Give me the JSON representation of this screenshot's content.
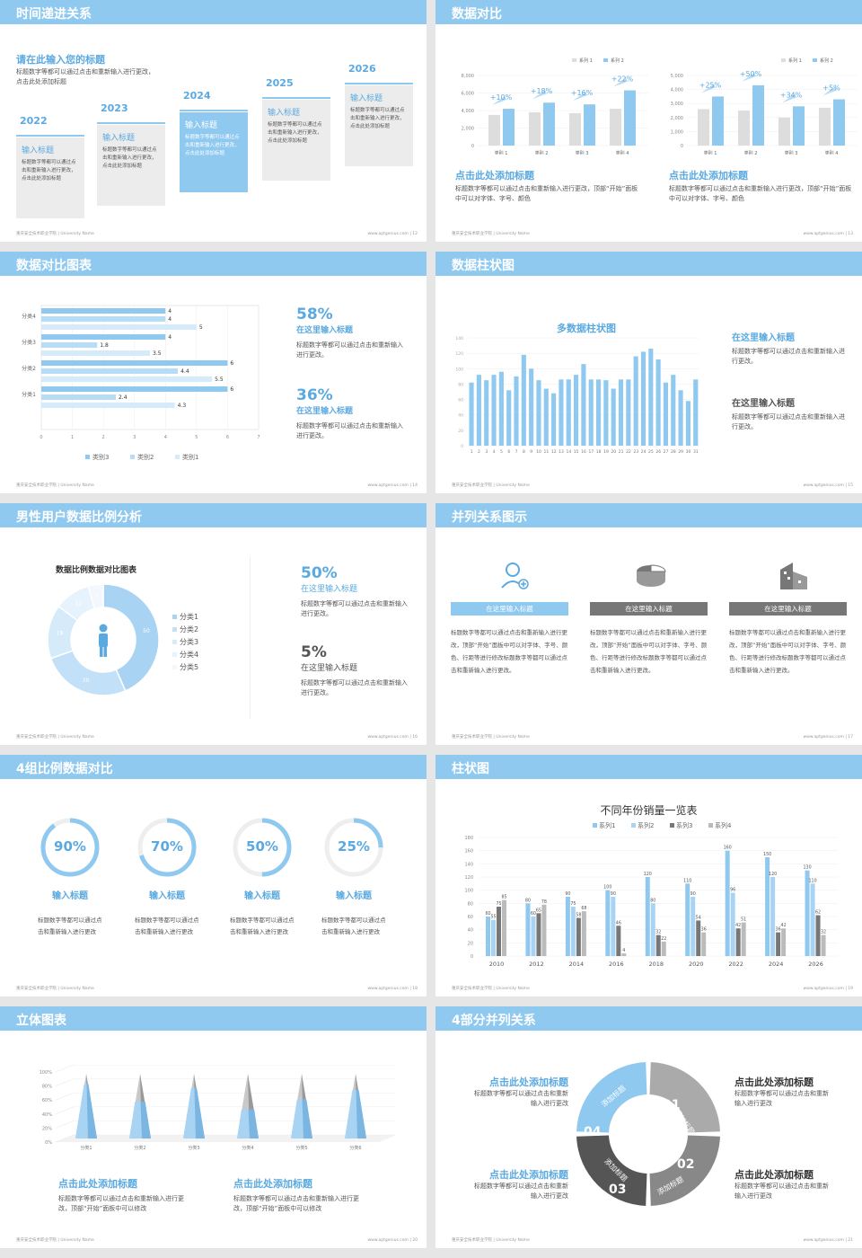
{
  "colors": {
    "accent": "#8fc9f0",
    "blue": "#5aa9e0",
    "dark": "#555555",
    "gray": "#aaaaaa"
  },
  "footer": {
    "left": "重庆安全技术职业学院 | University Name",
    "right": "www.aptgenius.com"
  },
  "s12": {
    "title": "时间递进关系",
    "page": "| 12",
    "heading": "请在此输入您的标题",
    "desc": "标题数字等都可以通过点击和重新输入进行更改，点击此处添加标题",
    "steps": [
      {
        "year": "2022",
        "title": "输入标题",
        "text": "标题数字等都可以通过点击和重新输入进行更改，点击此处添加标题"
      },
      {
        "year": "2023",
        "title": "输入标题",
        "text": "标题数字等都可以通过点击和重新输入进行更改，点击此处添加标题"
      },
      {
        "year": "2024",
        "title": "输入标题",
        "text": "标题数字等都可以通过点击和重新输入进行更改，点击此处添加标题"
      },
      {
        "year": "2025",
        "title": "输入标题",
        "text": "标题数字等都可以通过点击和重新输入进行更改，点击此处添加标题"
      },
      {
        "year": "2026",
        "title": "输入标题",
        "text": "标题数字等都可以通过点击和重新输入进行更改，点击此处添加标题"
      }
    ]
  },
  "s13": {
    "title": "数据对比",
    "page": "| 13",
    "heading": "点击此处添加标题",
    "text": "标题数字等都可以通过点击和重新输入进行更改，顶部“开始”面板中可以对字体、字号、颜色",
    "legend": [
      "系列 1",
      "系列 2"
    ]
  },
  "s14": {
    "title": "数据对比图表",
    "page": "| 14",
    "stats": [
      {
        "value": "58%",
        "label": "在这里输入标题",
        "text": "标题数字等都可以通过点击和重新输入进行更改。"
      },
      {
        "value": "36%",
        "label": "在这里输入标题",
        "text": "标题数字等都可以通过点击和重新输入进行更改。"
      }
    ],
    "legend": [
      "类别3",
      "类别2",
      "类别1"
    ]
  },
  "s15": {
    "title": "数据柱状图",
    "page": "| 15",
    "chart_title": "多数据柱状图",
    "items": [
      {
        "label": "在这里输入标题",
        "text": "标题数字等都可以通过点击和重新输入进行更改。"
      },
      {
        "label": "在这里输入标题",
        "text": "标题数字等都可以通过点击和重新输入进行更改。"
      }
    ]
  },
  "s16": {
    "title": "男性用户数据比例分析",
    "page": "| 16",
    "chart_title": "数据比例数据对比图表",
    "stats": [
      {
        "value": "50%",
        "label": "在这里输入标题",
        "text": "标题数字等都可以通过点击和重新输入进行更改。"
      },
      {
        "value": "5%",
        "label": "在这里输入标题",
        "text": "标题数字等都可以通过点击和重新输入进行更改。"
      }
    ]
  },
  "s17": {
    "title": "并列关系图示",
    "page": "| 17",
    "cols": [
      {
        "label": "在这里输入标题",
        "text": "标题数字等都可以通过点击和重新输入进行更改，顶部“开始”面板中可以对字体、字号、颜色、行距等进行修改标题数字等都可以通过点击和重新输入进行更改。"
      },
      {
        "label": "在这里输入标题",
        "text": "标题数字等都可以通过点击和重新输入进行更改，顶部“开始”面板中可以对字体、字号、颜色、行距等进行修改标题数字等都可以通过点击和重新输入进行更改。"
      },
      {
        "label": "在这里输入标题",
        "text": "标题数字等都可以通过点击和重新输入进行更改，顶部“开始”面板中可以对字体、字号、颜色、行距等进行修改标题数字等都可以通过点击和重新输入进行更改。"
      }
    ]
  },
  "s18": {
    "title": "4组比例数据对比",
    "page": "| 18",
    "items": [
      {
        "pct": "90%",
        "label": "输入标题",
        "text": "标题数字等都可以通过点击和重新输入进行更改",
        "value": 0.9
      },
      {
        "pct": "70%",
        "label": "输入标题",
        "text": "标题数字等都可以通过点击和重新输入进行更改",
        "value": 0.7
      },
      {
        "pct": "50%",
        "label": "输入标题",
        "text": "标题数字等都可以通过点击和重新输入进行更改",
        "value": 0.5
      },
      {
        "pct": "25%",
        "label": "输入标题",
        "text": "标题数字等都可以通过点击和重新输入进行更改",
        "value": 0.25
      }
    ]
  },
  "s19": {
    "title": "柱状图",
    "page": "| 19",
    "chart_title": "不同年份销量一览表"
  },
  "s20": {
    "title": "立体图表",
    "page": "| 20",
    "items": [
      {
        "heading": "点击此处添加标题",
        "text": "标题数字等都可以通过点击和重新输入进行更改，顶部“开始”面板中可以修改"
      },
      {
        "heading": "点击此处添加标题",
        "text": "标题数字等都可以通过点击和重新输入进行更改，顶部“开始”面板中可以修改"
      }
    ]
  },
  "s21": {
    "title": "4部分并列关系",
    "page": "| 21",
    "seg_label": "添加标题",
    "nums": [
      "01",
      "02",
      "03",
      "04"
    ],
    "items": [
      {
        "heading": "点击此处添加标题",
        "text": "标题数字等都可以通过点击和重新输入进行更改"
      },
      {
        "heading": "点击此处添加标题",
        "text": "标题数字等都可以通过点击和重新输入进行更改"
      },
      {
        "heading": "点击此处添加标题",
        "text": "标题数字等都可以通过点击和重新输入进行更改"
      },
      {
        "heading": "点击此处添加标题",
        "text": "标题数字等都可以通过点击和重新输入进行更改"
      }
    ]
  },
  "chart_data": [
    {
      "type": "bar",
      "categories": [
        "类别 1",
        "类别 2",
        "类别 3",
        "类别 4"
      ],
      "series": [
        {
          "name": "系列 1",
          "values": [
            3500,
            3800,
            3700,
            4200
          ]
        },
        {
          "name": "系列 2",
          "values": [
            4200,
            4900,
            4700,
            6300
          ]
        }
      ],
      "labels": [
        "+10%",
        "+18%",
        "+16%",
        "+22%"
      ],
      "ylim": [
        0,
        8000
      ],
      "yticks": [
        "0",
        "2,000",
        "4,000",
        "6,000",
        "8,000"
      ]
    },
    {
      "type": "bar",
      "categories": [
        "类别 1",
        "类别 2",
        "类别 3",
        "类别 4"
      ],
      "series": [
        {
          "name": "系列 1",
          "values": [
            2600,
            2500,
            2000,
            2700
          ]
        },
        {
          "name": "系列 2",
          "values": [
            3500,
            4300,
            2800,
            3300
          ]
        }
      ],
      "labels": [
        "+25%",
        "+50%",
        "+34%",
        "+5%"
      ],
      "ylim": [
        0,
        5000
      ],
      "yticks": [
        "0",
        "1,000",
        "2,000",
        "3,000",
        "4,000",
        "5,000"
      ]
    },
    {
      "type": "bar",
      "orientation": "horizontal",
      "categories": [
        "分类1",
        "分类2",
        "分类3",
        "分类4"
      ],
      "series": [
        {
          "name": "类别1",
          "values": [
            4.3,
            5.5,
            3.5,
            5
          ]
        },
        {
          "name": "类别2",
          "values": [
            2.4,
            4.4,
            1.8,
            4
          ]
        },
        {
          "name": "类别3",
          "values": [
            3,
            2,
            4,
            4
          ]
        }
      ],
      "top_values": [
        6,
        6,
        4,
        4
      ],
      "xlim": [
        0,
        7
      ]
    },
    {
      "type": "bar",
      "x": [
        "1",
        "2",
        "3",
        "4",
        "5",
        "6",
        "7",
        "8",
        "9",
        "10",
        "11",
        "12",
        "13",
        "14",
        "15",
        "16",
        "17",
        "18",
        "19",
        "20",
        "21",
        "22",
        "23",
        "24",
        "25",
        "26",
        "27",
        "28",
        "29",
        "30",
        "31"
      ],
      "values": [
        82,
        92,
        85,
        92,
        96,
        72,
        90,
        118,
        100,
        85,
        74,
        68,
        86,
        86,
        92,
        106,
        86,
        86,
        85,
        74,
        86,
        86,
        116,
        122,
        126,
        112,
        82,
        92,
        72,
        58,
        86
      ],
      "ylim": [
        0,
        140
      ],
      "yticks": [
        "0",
        "20",
        "40",
        "60",
        "80",
        "100",
        "120",
        "140"
      ]
    },
    {
      "type": "pie",
      "labels": [
        "分类1",
        "分类2",
        "分类3",
        "分类4",
        "分类5"
      ],
      "values": [
        50,
        30,
        18,
        12,
        5
      ]
    },
    {
      "type": "bar",
      "title": "不同年份销量一览表",
      "categories": [
        "2010",
        "2012",
        "2014",
        "2016",
        "2018",
        "2020",
        "2022",
        "2024",
        "2026"
      ],
      "series": [
        {
          "name": "系列1",
          "values": [
            60,
            80,
            90,
            100,
            120,
            110,
            160,
            150,
            130
          ]
        },
        {
          "name": "系列2",
          "values": [
            55,
            60,
            75,
            90,
            80,
            90,
            96,
            120,
            110
          ]
        },
        {
          "name": "系列3",
          "values": [
            75,
            65,
            58,
            46,
            32,
            54,
            42,
            36,
            62
          ]
        },
        {
          "name": "系列4",
          "values": [
            85,
            78,
            68,
            4,
            22,
            36,
            51,
            42,
            32
          ]
        }
      ],
      "ylim": [
        0,
        180
      ],
      "yticks": [
        "0",
        "20",
        "40",
        "60",
        "80",
        "100",
        "120",
        "140",
        "160",
        "180"
      ]
    },
    {
      "type": "bar",
      "subtype": "3d-cone",
      "categories": [
        "分类1",
        "分类2",
        "分类3",
        "分类4",
        "分类5",
        "分类6"
      ],
      "values": [
        0.84,
        0.57,
        0.78,
        0.45,
        0.6,
        0.75
      ],
      "yticks": [
        "0%",
        "20%",
        "40%",
        "60%",
        "80%",
        "100%"
      ]
    }
  ]
}
